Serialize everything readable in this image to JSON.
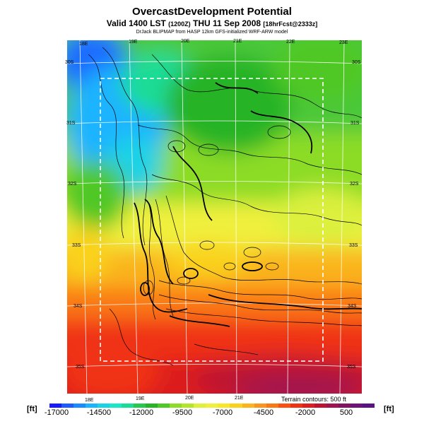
{
  "header": {
    "title": "OvercastDevelopment Potential",
    "valid_prefix": "Valid 1400 LST",
    "valid_z": "(1200Z)",
    "valid_day": "THU 11 Sep 2008",
    "valid_fcst": "[18hrFcst@2333z]",
    "credit": "DrJack BLIPMAP from HASP 12km GFS-initialized WRF-ARW model"
  },
  "map": {
    "lon_ticks_top": [
      "18E",
      "19E",
      "20E",
      "21E",
      "22E",
      "23E"
    ],
    "lon_ticks_bottom": [
      "18E",
      "19E",
      "20E",
      "21E"
    ],
    "lat_ticks_left": [
      "30S",
      "31S",
      "32S",
      "33S",
      "34S",
      "35S"
    ],
    "lat_ticks_right": [
      "30S",
      "31S",
      "32S",
      "33S",
      "34S",
      "35S"
    ],
    "terrain_note": "Terrain contours: 500 ft"
  },
  "legend": {
    "unit_left": "[ft]",
    "unit_right": "[ft]",
    "labels": [
      "-17000",
      "-14500",
      "-12000",
      "-9500",
      "-7000",
      "-4500",
      "-2000",
      "500"
    ],
    "colors": [
      "#1a1aff",
      "#1e5cff",
      "#1a8cff",
      "#1ab4ff",
      "#1ad2e6",
      "#1ae6c8",
      "#1adc96",
      "#28c850",
      "#28b428",
      "#50c828",
      "#8cdc28",
      "#b4e628",
      "#dcf03c",
      "#f0f03c",
      "#fae628",
      "#fad21e",
      "#fab41e",
      "#fa961e",
      "#fa7814",
      "#fa5014",
      "#f03214",
      "#dc1e1e",
      "#be1432",
      "#a01450",
      "#821464",
      "#6e1478",
      "#5a1482"
    ]
  }
}
